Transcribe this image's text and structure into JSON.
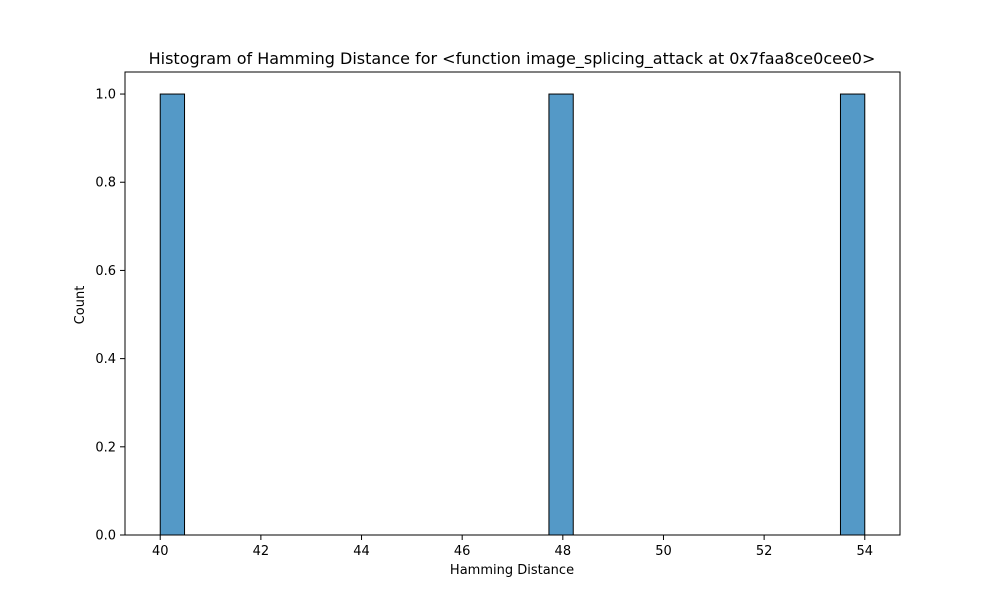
{
  "chart_data": {
    "type": "bar",
    "title": "Histogram of Hamming Distance for <function image_splicing_attack at 0x7faa8ce0cee0>",
    "xlabel": "Hamming Distance",
    "ylabel": "Count",
    "xlim": [
      39.3,
      54.7
    ],
    "ylim": [
      0,
      1.05
    ],
    "xticks": [
      40,
      42,
      44,
      46,
      48,
      50,
      52,
      54
    ],
    "xtick_labels": [
      "40",
      "42",
      "44",
      "46",
      "48",
      "50",
      "52",
      "54"
    ],
    "yticks": [
      0.0,
      0.2,
      0.4,
      0.6,
      0.8,
      1.0
    ],
    "ytick_labels": [
      "0.0",
      "0.2",
      "0.4",
      "0.6",
      "0.8",
      "1.0"
    ],
    "bin_start": 40,
    "bin_end": 54,
    "bin_count": 29,
    "bins": [
      {
        "x0": 40.0,
        "x1": 40.483,
        "count": 1
      },
      {
        "x0": 47.724,
        "x1": 48.207,
        "count": 1
      },
      {
        "x0": 53.517,
        "x1": 54.0,
        "count": 1
      }
    ],
    "grid": false,
    "colors": {
      "bar_fill": "#5499c7",
      "bar_edge": "#000000",
      "axis": "#000000",
      "background": "#ffffff"
    }
  }
}
